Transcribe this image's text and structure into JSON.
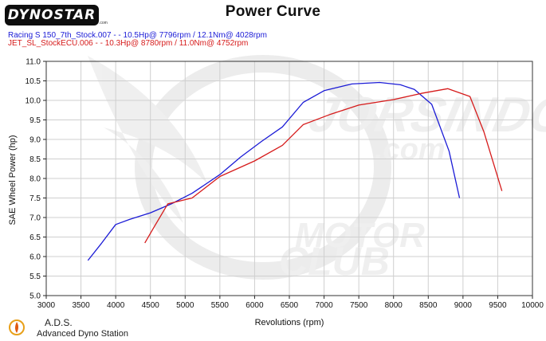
{
  "header": {
    "logo_text": "DYNOSTAR",
    "logo_suffix": ".com",
    "title": "Power Curve"
  },
  "runs": [
    {
      "label": "Racing S 150_7th_Stock.007 -  - 10.5Hp@ 7796rpm / 12.1Nm@ 4028rpm",
      "color": "#1b1bd6"
    },
    {
      "label": "JET_SL_StockECU.006 -  - 10.3Hp@ 8780rpm / 11.0Nm@ 4752rpm",
      "color": "#d61b1b"
    }
  ],
  "watermark": {
    "line1": "JORSINDO",
    "line2": ".com",
    "line3": "MOTOR",
    "line4": "CLUB"
  },
  "footer": {
    "ads_title": "A.D.S.",
    "ads_subtitle": "Advanced Dyno Station"
  },
  "chart_data": {
    "type": "line",
    "xlabel": "Revolutions (rpm)",
    "ylabel": "SAE Wheel Power (hp)",
    "xlim": [
      3000,
      10000
    ],
    "ylim": [
      5.0,
      11.0
    ],
    "xticks": [
      "3000",
      "3500",
      "4000",
      "4500",
      "5000",
      "5500",
      "6000",
      "6500",
      "7000",
      "7500",
      "8000",
      "8500",
      "9000",
      "9500",
      "10000"
    ],
    "yticks": [
      "5.0",
      "5.5",
      "6.0",
      "6.5",
      "7.0",
      "7.5",
      "8.0",
      "8.5",
      "9.0",
      "9.5",
      "10.0",
      "10.5",
      "11.0"
    ],
    "grid": true,
    "series": [
      {
        "name": "Racing S 150_7th_Stock.007",
        "color": "#1b1bd6",
        "points": [
          [
            3600,
            5.9
          ],
          [
            3800,
            6.35
          ],
          [
            4000,
            6.82
          ],
          [
            4200,
            6.95
          ],
          [
            4500,
            7.12
          ],
          [
            4800,
            7.35
          ],
          [
            5100,
            7.62
          ],
          [
            5500,
            8.1
          ],
          [
            5800,
            8.55
          ],
          [
            6100,
            8.95
          ],
          [
            6400,
            9.32
          ],
          [
            6700,
            9.95
          ],
          [
            7000,
            10.25
          ],
          [
            7400,
            10.42
          ],
          [
            7800,
            10.46
          ],
          [
            8100,
            10.4
          ],
          [
            8300,
            10.28
          ],
          [
            8550,
            9.9
          ],
          [
            8800,
            8.7
          ],
          [
            8950,
            7.5
          ]
        ]
      },
      {
        "name": "JET_SL_StockECU.006",
        "color": "#d61b1b",
        "points": [
          [
            4420,
            6.35
          ],
          [
            4550,
            6.75
          ],
          [
            4750,
            7.35
          ],
          [
            5100,
            7.5
          ],
          [
            5500,
            8.05
          ],
          [
            6000,
            8.45
          ],
          [
            6400,
            8.85
          ],
          [
            6700,
            9.38
          ],
          [
            7100,
            9.65
          ],
          [
            7500,
            9.88
          ],
          [
            8000,
            10.02
          ],
          [
            8400,
            10.18
          ],
          [
            8780,
            10.3
          ],
          [
            9100,
            10.1
          ],
          [
            9300,
            9.2
          ],
          [
            9560,
            7.68
          ]
        ]
      }
    ]
  }
}
